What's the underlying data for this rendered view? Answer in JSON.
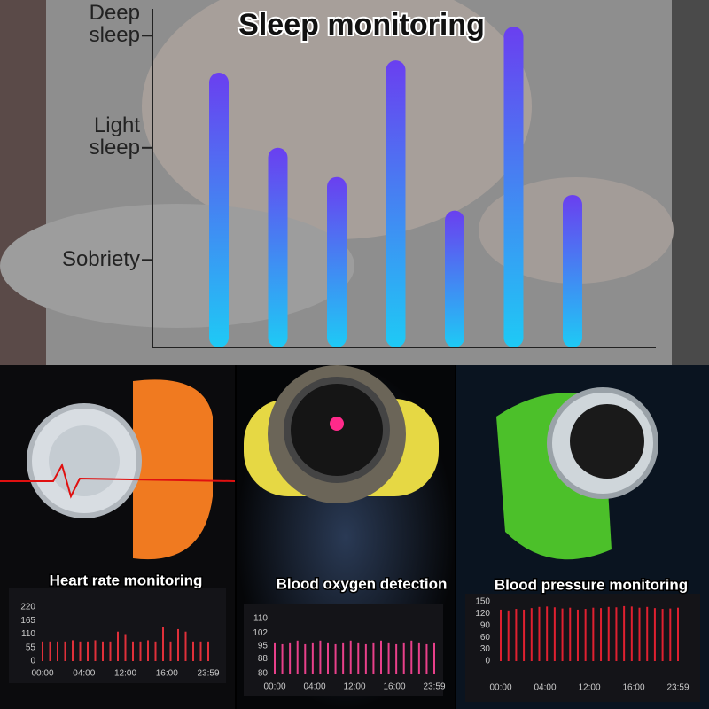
{
  "chart_data": [
    {
      "type": "bar",
      "title": "Sleep monitoring",
      "values": [
        2.67,
        2.0,
        1.74,
        2.78,
        1.44,
        3.08,
        1.58
      ],
      "ylim": [
        0.22,
        3.2
      ],
      "yticks": [
        {
          "value": 1,
          "label": "Sobriety"
        },
        {
          "value": 2,
          "label": "Light sleep"
        },
        {
          "value": 3,
          "label": "Deep sleep"
        }
      ],
      "color": [
        "#6a3ff0",
        "#1ecaf5"
      ]
    },
    {
      "type": "bar",
      "title": "Heart rate monitoring",
      "values": [
        80,
        80,
        80,
        80,
        85,
        80,
        80,
        85,
        80,
        80,
        120,
        110,
        80,
        80,
        85,
        80,
        140,
        80,
        130,
        120,
        80,
        80,
        80
      ],
      "ylim": [
        0,
        220
      ],
      "yticks": [
        0,
        55,
        110,
        165,
        220
      ],
      "x_tick_labels": [
        "00:00",
        "04:00",
        "12:00",
        "16:00",
        "23:59"
      ],
      "color": [
        "#e0303a",
        "#e0303a"
      ]
    },
    {
      "type": "bar",
      "title": "Blood oxygen detection",
      "values": [
        97,
        96,
        97,
        98,
        96,
        97,
        98,
        97,
        96,
        97,
        98,
        97,
        96,
        97,
        98,
        97,
        96,
        97,
        98,
        97,
        96,
        97
      ],
      "ylim": [
        80,
        110
      ],
      "yticks": [
        80,
        88,
        95,
        102,
        110
      ],
      "x_tick_labels": [
        "00:00",
        "04:00",
        "12:00",
        "16:00",
        "23:59"
      ],
      "color": [
        "#e8408a",
        "#e8408a"
      ]
    },
    {
      "type": "bar",
      "title": "Blood pressure monitoring",
      "values": [
        130,
        128,
        132,
        130,
        134,
        137,
        138,
        136,
        133,
        135,
        130,
        132,
        135,
        134,
        137,
        136,
        139,
        138,
        135,
        137,
        134,
        132,
        133,
        135
      ],
      "ylim": [
        0,
        150
      ],
      "yticks": [
        0,
        30,
        60,
        90,
        120,
        150
      ],
      "x_tick_labels": [
        "00:00",
        "04:00",
        "12:00",
        "16:00",
        "23:59"
      ],
      "color": [
        "#e02030",
        "#e02030"
      ]
    }
  ]
}
